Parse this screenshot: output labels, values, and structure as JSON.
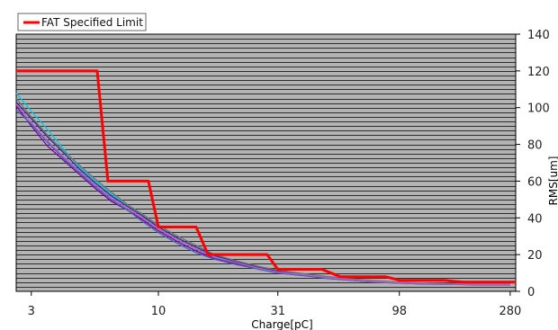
{
  "chart_data": {
    "type": "line",
    "x_scale": "log",
    "y_axis_side": "right",
    "xlabel": "Charge[pC]",
    "ylabel": "RMS[um]",
    "xlim": [
      2.6,
      295
    ],
    "ylim": [
      0,
      140
    ],
    "x_ticks": [
      3,
      10,
      31,
      98,
      280
    ],
    "y_ticks": [
      0,
      20,
      40,
      60,
      80,
      100,
      120,
      140
    ],
    "grid": "horizontal lines every 2.5 um",
    "plot_background": "#b3b3b3",
    "legend_position": "top-left",
    "legend_entries": [
      "FAT Specified Limit"
    ],
    "series": [
      {
        "name": "FAT Specified Limit",
        "color": "#ff0000",
        "shape": "step",
        "points": [
          [
            2.6,
            120
          ],
          [
            5.6,
            120
          ],
          [
            5.6,
            120
          ],
          [
            6.2,
            60
          ],
          [
            9.1,
            60
          ],
          [
            10,
            35
          ],
          [
            14.3,
            35
          ],
          [
            16,
            20
          ],
          [
            28,
            20
          ],
          [
            31,
            12
          ],
          [
            47,
            12
          ],
          [
            56,
            8
          ],
          [
            86,
            8
          ],
          [
            98,
            6
          ],
          [
            150,
            6
          ],
          [
            180,
            5
          ],
          [
            295,
            5
          ]
        ]
      },
      {
        "color": "#00c8e8",
        "points": [
          [
            2.6,
            108
          ],
          [
            3,
            98
          ],
          [
            3.5,
            88
          ],
          [
            4.1,
            77
          ],
          [
            4.7,
            68
          ],
          [
            5.5,
            60
          ],
          [
            6.4,
            53
          ],
          [
            7.5,
            46
          ],
          [
            8.6,
            41
          ],
          [
            10,
            34
          ],
          [
            12,
            28
          ],
          [
            14.3,
            23
          ],
          [
            17,
            19
          ],
          [
            21,
            16
          ],
          [
            26,
            13
          ],
          [
            31,
            11
          ],
          [
            40,
            9
          ],
          [
            50,
            7.5
          ],
          [
            62,
            6.5
          ],
          [
            78,
            5.5
          ],
          [
            98,
            4.8
          ],
          [
            125,
            4.3
          ],
          [
            160,
            4
          ],
          [
            210,
            3.8
          ],
          [
            280,
            3.8
          ]
        ]
      },
      {
        "color": "#303090",
        "points": [
          [
            2.6,
            103
          ],
          [
            3,
            94
          ],
          [
            3.5,
            84
          ],
          [
            4.1,
            75
          ],
          [
            4.7,
            67
          ],
          [
            5.5,
            59
          ],
          [
            6.4,
            52
          ],
          [
            7.5,
            46
          ],
          [
            8.6,
            41
          ],
          [
            10,
            35
          ],
          [
            12,
            29
          ],
          [
            14.3,
            24
          ],
          [
            17,
            19.5
          ],
          [
            21,
            16
          ],
          [
            26,
            13
          ],
          [
            31,
            11
          ],
          [
            40,
            9
          ],
          [
            50,
            7.5
          ],
          [
            62,
            6.5
          ],
          [
            78,
            5.5
          ],
          [
            98,
            4.8
          ],
          [
            125,
            4.3
          ],
          [
            160,
            4
          ],
          [
            210,
            3.7
          ],
          [
            280,
            3.7
          ]
        ]
      },
      {
        "color": "#8000a0",
        "points": [
          [
            2.6,
            101
          ],
          [
            3,
            90
          ],
          [
            3.5,
            79
          ],
          [
            4.1,
            71
          ],
          [
            4.7,
            64
          ],
          [
            5.5,
            56
          ],
          [
            6.4,
            49
          ],
          [
            7.5,
            44
          ],
          [
            8.6,
            39
          ],
          [
            10,
            33
          ],
          [
            12,
            27
          ],
          [
            14.3,
            22
          ],
          [
            17,
            18
          ],
          [
            21,
            15
          ],
          [
            26,
            12
          ],
          [
            31,
            10
          ],
          [
            40,
            8.5
          ],
          [
            50,
            7
          ],
          [
            62,
            6
          ],
          [
            78,
            5
          ],
          [
            98,
            4.5
          ],
          [
            125,
            4
          ],
          [
            160,
            3.8
          ],
          [
            210,
            3.5
          ],
          [
            280,
            3.5
          ]
        ]
      },
      {
        "color": "#707070",
        "points": [
          [
            2.6,
            105
          ],
          [
            3,
            95
          ],
          [
            3.5,
            85
          ],
          [
            4.1,
            76
          ],
          [
            4.7,
            69
          ],
          [
            5.5,
            61
          ],
          [
            6.4,
            54
          ],
          [
            7.5,
            47
          ],
          [
            8.6,
            42
          ],
          [
            10,
            36
          ],
          [
            12,
            30
          ],
          [
            14.3,
            25
          ],
          [
            17,
            20
          ],
          [
            21,
            16.5
          ],
          [
            26,
            13.5
          ],
          [
            31,
            11.5
          ],
          [
            40,
            9.5
          ],
          [
            50,
            8
          ],
          [
            62,
            6.8
          ],
          [
            78,
            5.8
          ],
          [
            98,
            5
          ],
          [
            125,
            4.5
          ],
          [
            160,
            4.2
          ],
          [
            210,
            4
          ],
          [
            280,
            4
          ]
        ]
      },
      {
        "color": "#4060c0",
        "points": [
          [
            2.6,
            99
          ],
          [
            3,
            91
          ],
          [
            3.5,
            81
          ],
          [
            4.1,
            72
          ],
          [
            4.7,
            65
          ],
          [
            5.5,
            57
          ],
          [
            6.4,
            50
          ],
          [
            7.5,
            44
          ],
          [
            8.6,
            38
          ],
          [
            10,
            32
          ],
          [
            12,
            26
          ],
          [
            14.3,
            21
          ],
          [
            17,
            17.5
          ],
          [
            21,
            14.5
          ],
          [
            26,
            12
          ],
          [
            31,
            10
          ],
          [
            40,
            8.5
          ],
          [
            50,
            7
          ],
          [
            62,
            6
          ],
          [
            78,
            5
          ],
          [
            98,
            4.5
          ],
          [
            125,
            4
          ],
          [
            160,
            3.8
          ],
          [
            210,
            3.6
          ],
          [
            280,
            3.6
          ]
        ]
      },
      {
        "color": "#c060c0",
        "points": [
          [
            2.6,
            102
          ],
          [
            3,
            92
          ],
          [
            3.5,
            82
          ],
          [
            4.1,
            73
          ],
          [
            4.7,
            66
          ],
          [
            5.5,
            58
          ],
          [
            6.4,
            51
          ],
          [
            7.5,
            45
          ],
          [
            8.6,
            40
          ],
          [
            10,
            34
          ],
          [
            12,
            28
          ],
          [
            14.3,
            23
          ],
          [
            17,
            18.5
          ],
          [
            21,
            15.5
          ],
          [
            26,
            12.5
          ],
          [
            31,
            10.5
          ],
          [
            40,
            9
          ],
          [
            50,
            7.5
          ],
          [
            62,
            6.3
          ],
          [
            78,
            5.3
          ],
          [
            98,
            4.7
          ],
          [
            125,
            4.2
          ],
          [
            160,
            3.9
          ],
          [
            210,
            3.7
          ],
          [
            280,
            3.7
          ]
        ]
      }
    ]
  }
}
